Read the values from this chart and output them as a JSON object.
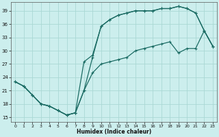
{
  "xlabel": "Humidex (Indice chaleur)",
  "bg_color": "#cceeed",
  "grid_color": "#aad8d4",
  "line_color": "#1a6b63",
  "xlim": [
    -0.5,
    23.5
  ],
  "ylim": [
    14,
    41
  ],
  "yticks": [
    15,
    18,
    21,
    24,
    27,
    30,
    33,
    36,
    39
  ],
  "xticks": [
    0,
    1,
    2,
    3,
    4,
    5,
    6,
    7,
    8,
    9,
    10,
    11,
    12,
    13,
    14,
    15,
    16,
    17,
    18,
    19,
    20,
    21,
    22,
    23
  ],
  "line1_x": [
    0,
    1,
    2,
    3,
    4,
    5,
    6,
    7,
    8,
    9,
    10,
    11,
    12,
    13,
    14,
    15,
    16,
    17,
    18,
    19,
    20,
    21,
    22,
    23
  ],
  "line1_y": [
    23.0,
    22.0,
    20.0,
    18.0,
    17.5,
    16.5,
    15.5,
    16.0,
    21.0,
    28.5,
    35.5,
    37.0,
    38.0,
    38.5,
    39.0,
    39.0,
    39.0,
    39.5,
    39.5,
    40.0,
    39.5,
    38.5,
    34.5,
    31.0
  ],
  "line2_x": [
    0,
    1,
    2,
    3,
    4,
    5,
    6,
    7,
    8,
    9,
    10,
    11,
    12,
    13,
    14,
    15,
    16,
    17,
    18,
    19,
    20,
    21,
    22,
    23
  ],
  "line2_y": [
    23.0,
    22.0,
    20.0,
    18.0,
    17.5,
    16.5,
    15.5,
    16.0,
    27.5,
    29.0,
    35.5,
    37.0,
    38.0,
    38.5,
    39.0,
    39.0,
    39.0,
    39.5,
    39.5,
    40.0,
    39.5,
    38.5,
    34.5,
    31.0
  ],
  "line3_x": [
    0,
    1,
    2,
    3,
    4,
    5,
    6,
    7,
    8,
    9,
    10,
    11,
    12,
    13,
    14,
    15,
    16,
    17,
    18,
    19,
    20,
    21,
    22,
    23
  ],
  "line3_y": [
    23.0,
    22.0,
    20.0,
    18.0,
    17.5,
    16.5,
    15.5,
    16.0,
    21.0,
    25.0,
    27.0,
    27.5,
    28.0,
    28.5,
    30.0,
    30.5,
    31.0,
    31.5,
    32.0,
    29.5,
    30.5,
    30.5,
    34.5,
    31.0
  ]
}
